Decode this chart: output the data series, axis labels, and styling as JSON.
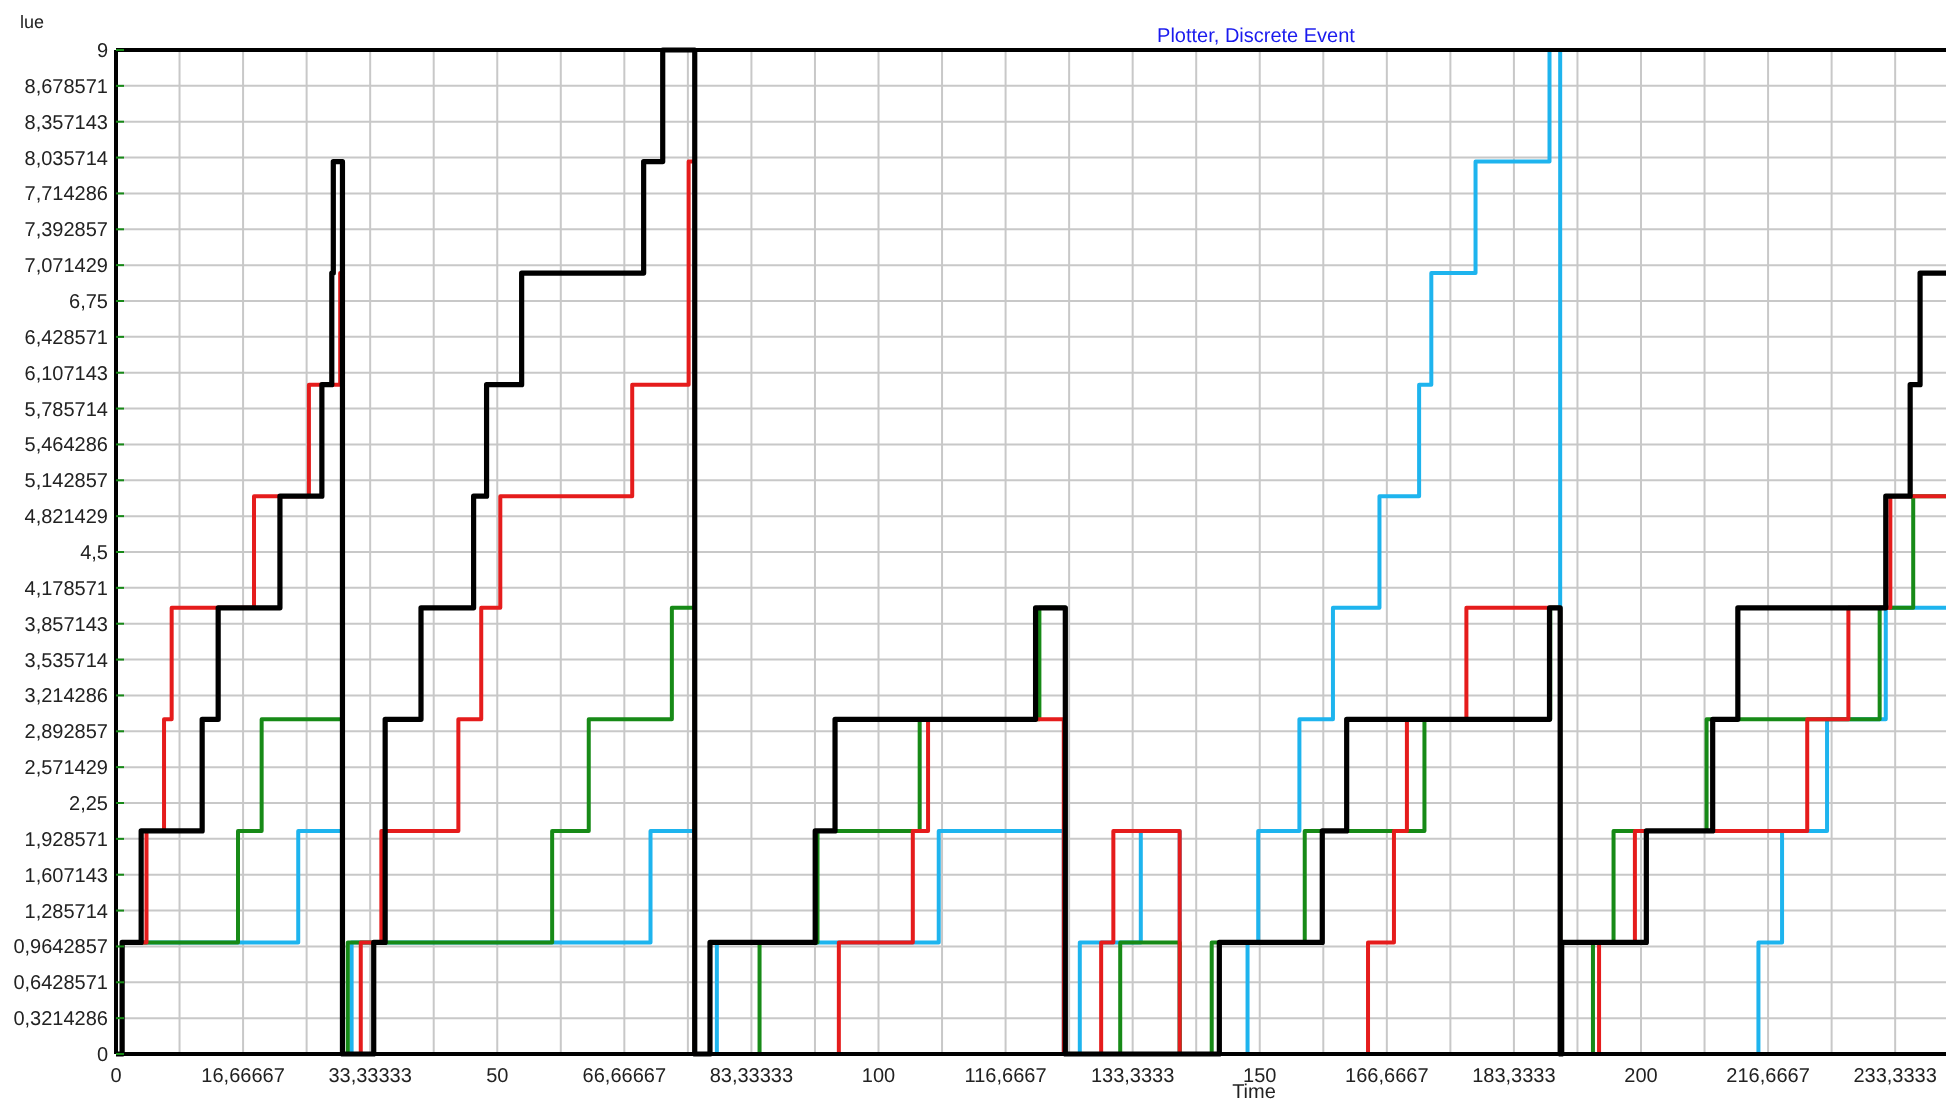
{
  "chart_data": {
    "type": "step",
    "title": "Plotter, Discrete Event",
    "xlabel": "Time",
    "ylabel": "lue",
    "xlim": [
      0,
      240
    ],
    "ylim": [
      0,
      9
    ],
    "xticks": [
      0,
      {
        "value": 8.33333,
        "label": null
      },
      {
        "value": 16.66667,
        "label": "16,66667"
      },
      {
        "value": 25,
        "label": null
      },
      {
        "value": 33.33333,
        "label": "33,33333"
      },
      {
        "value": 41.66667,
        "label": null
      },
      50,
      {
        "value": 58.33333,
        "label": null
      },
      {
        "value": 66.66667,
        "label": "66,66667"
      },
      {
        "value": 75,
        "label": null
      },
      {
        "value": 83.33333,
        "label": "83,33333"
      },
      {
        "value": 91.66667,
        "label": null
      },
      100,
      {
        "value": 108.3333,
        "label": null
      },
      {
        "value": 116.6667,
        "label": "116,6667"
      },
      {
        "value": 125,
        "label": null
      },
      {
        "value": 133.3333,
        "label": "133,3333"
      },
      {
        "value": 141.6667,
        "label": null
      },
      150,
      {
        "value": 158.3333,
        "label": null
      },
      {
        "value": 166.6667,
        "label": "166,6667"
      },
      {
        "value": 175,
        "label": null
      },
      {
        "value": 183.3333,
        "label": "183,3333"
      },
      {
        "value": 191.6667,
        "label": null
      },
      200,
      {
        "value": 208.3333,
        "label": null
      },
      {
        "value": 216.6667,
        "label": "216,6667"
      },
      {
        "value": 225,
        "label": null
      },
      {
        "value": 233.3333,
        "label": "233,3333"
      }
    ],
    "yticks": [
      0,
      {
        "value": 0.3214286,
        "label": "0,3214286"
      },
      {
        "value": 0.6428571,
        "label": "0,6428571"
      },
      {
        "value": 0.9642857,
        "label": "0,9642857"
      },
      {
        "value": 1.285714,
        "label": "1,285714"
      },
      {
        "value": 1.607143,
        "label": "1,607143"
      },
      {
        "value": 1.928571,
        "label": "1,928571"
      },
      {
        "value": 2.25,
        "label": "2,25"
      },
      {
        "value": 2.571429,
        "label": "2,571429"
      },
      {
        "value": 2.892857,
        "label": "2,892857"
      },
      {
        "value": 3.214286,
        "label": "3,214286"
      },
      {
        "value": 3.535714,
        "label": "3,535714"
      },
      {
        "value": 3.857143,
        "label": "3,857143"
      },
      {
        "value": 4.178571,
        "label": "4,178571"
      },
      {
        "value": 4.5,
        "label": "4,5"
      },
      {
        "value": 4.821429,
        "label": "4,821429"
      },
      {
        "value": 5.142857,
        "label": "5,142857"
      },
      {
        "value": 5.464286,
        "label": "5,464286"
      },
      {
        "value": 5.785714,
        "label": "5,785714"
      },
      {
        "value": 6.107143,
        "label": "6,107143"
      },
      {
        "value": 6.428571,
        "label": "6,428571"
      },
      {
        "value": 6.75,
        "label": "6,75"
      },
      {
        "value": 7.071429,
        "label": "7,071429"
      },
      {
        "value": 7.392857,
        "label": "7,392857"
      },
      {
        "value": 7.714286,
        "label": "7,714286"
      },
      {
        "value": 8.035714,
        "label": "8,035714"
      },
      {
        "value": 8.357143,
        "label": "8,357143"
      },
      {
        "value": 8.678571,
        "label": "8,678571"
      },
      9
    ],
    "grid": true,
    "series": [
      {
        "color": "#000000",
        "x": [
          0,
          0.8,
          3.3,
          11.3,
          13.4,
          21.5,
          27,
          28.3,
          28.5,
          29.7,
          33.8,
          35.3,
          40,
          46.9,
          48.6,
          53.2,
          69.2,
          71.7,
          75.9,
          77.9,
          91.7,
          94.3,
          120.6,
          124.5,
          144.7,
          158.2,
          161.4,
          188,
          189.4,
          189.6,
          200.7,
          209.4,
          212.7,
          232.1,
          235.3,
          236.6,
          240
        ],
        "values": [
          0,
          1,
          2,
          3,
          4,
          5,
          6,
          7,
          8,
          0,
          1,
          3,
          4,
          5,
          6,
          7,
          8,
          9,
          0,
          1,
          2,
          3,
          4,
          0,
          1,
          2,
          3,
          4,
          0,
          1,
          2,
          3,
          4,
          5,
          6,
          7,
          7
        ]
      },
      {
        "color": "#e51c1c",
        "x": [
          0,
          0.8,
          4.0,
          6.3,
          7.3,
          18.1,
          25.3,
          29.4,
          29.7,
          32.1,
          34.8,
          44.9,
          47.9,
          50.4,
          67.7,
          75.1,
          75.9,
          94.8,
          104.5,
          106.5,
          124.3,
          129.2,
          130.8,
          139.5,
          164.2,
          167.6,
          169.3,
          177.1,
          189.4,
          194.5,
          199.2,
          221.8,
          227.2,
          232.7,
          240
        ],
        "values": [
          0,
          1,
          2,
          3,
          4,
          5,
          6,
          7,
          0,
          1,
          2,
          3,
          4,
          5,
          6,
          8,
          0,
          1,
          2,
          3,
          0,
          1,
          2,
          0,
          1,
          2,
          3,
          4,
          0,
          1,
          2,
          3,
          4,
          5,
          5
        ]
      },
      {
        "color": "#178a17",
        "x": [
          0,
          0.8,
          16.0,
          19.1,
          29.7,
          30.4,
          57.2,
          62.0,
          72.9,
          75.9,
          84.4,
          92.0,
          105.4,
          121.1,
          124.5,
          131.7,
          139.5,
          143.7,
          155.9,
          171.6,
          188.1,
          189.4,
          193.7,
          196.4,
          208.6,
          231.3,
          235.7,
          240
        ],
        "values": [
          0,
          1,
          2,
          3,
          0,
          1,
          2,
          3,
          4,
          0,
          1,
          2,
          3,
          4,
          0,
          1,
          0,
          1,
          2,
          3,
          4,
          0,
          1,
          2,
          3,
          4,
          5,
          5
        ]
      },
      {
        "color": "#1eb4ee",
        "x": [
          0,
          0.8,
          23.9,
          29.7,
          30.9,
          70.1,
          75.9,
          78.8,
          107.9,
          124.3,
          126.4,
          134.4,
          139.5,
          148.4,
          149.8,
          155.2,
          159.6,
          165.7,
          170.9,
          172.5,
          178.3,
          188.0,
          189.4,
          215.4,
          218.5,
          224.4,
          232.1,
          240
        ],
        "values": [
          0,
          1,
          2,
          0,
          1,
          2,
          0,
          1,
          2,
          0,
          1,
          2,
          0,
          1,
          2,
          3,
          4,
          5,
          6,
          7,
          8,
          9,
          0,
          1,
          2,
          3,
          4,
          4
        ]
      }
    ]
  }
}
